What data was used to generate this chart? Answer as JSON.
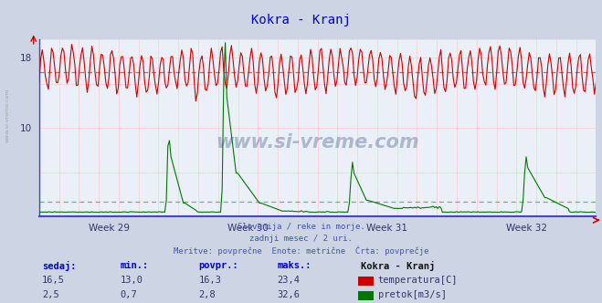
{
  "title": "Kokra - Kranj",
  "title_color": "#0000cc",
  "bg_color": "#cdd5e4",
  "plot_bg_color": "#eaeff8",
  "grid_h_color": "#ffcccc",
  "grid_v_color": "#ffcccc",
  "xlabel_weeks": [
    "Week 29",
    "Week 30",
    "Week 31",
    "Week 32"
  ],
  "ylim_max": 20,
  "y_axis_ticks": [
    10,
    18
  ],
  "temp_avg": 16.3,
  "flow_avg": 2.8,
  "flow_max": 32.6,
  "temp_color": "#cc0000",
  "flow_color": "#007700",
  "avg_temp_line_color": "#cc6666",
  "avg_flow_line_color": "#66bb66",
  "footer_lines": [
    "Slovenija / reke in morje.",
    "zadnji mesec / 2 uri.",
    "Meritve: povprečne  Enote: metrične  Črta: povprečje"
  ],
  "footer_color": "#4455aa",
  "table_headers": [
    "sedaj:",
    "min.:",
    "povpr.:",
    "maks.:"
  ],
  "table_header_color": "#0000cc",
  "station_name": "Kokra - Kranj",
  "row1": {
    "sedaj": "16,5",
    "min": "13,0",
    "povpr": "16,3",
    "maks": "23,4",
    "label": "temperatura[C]",
    "color": "#cc0000"
  },
  "row2": {
    "sedaj": "2,5",
    "min": "0,7",
    "povpr": "2,8",
    "maks": "32,6",
    "label": "pretok[m3/s]",
    "color": "#007700"
  },
  "watermark": "www.si-vreme.com",
  "watermark_color": "#1a3a6e",
  "side_text": "www.si-vreme.com",
  "n_points": 360
}
